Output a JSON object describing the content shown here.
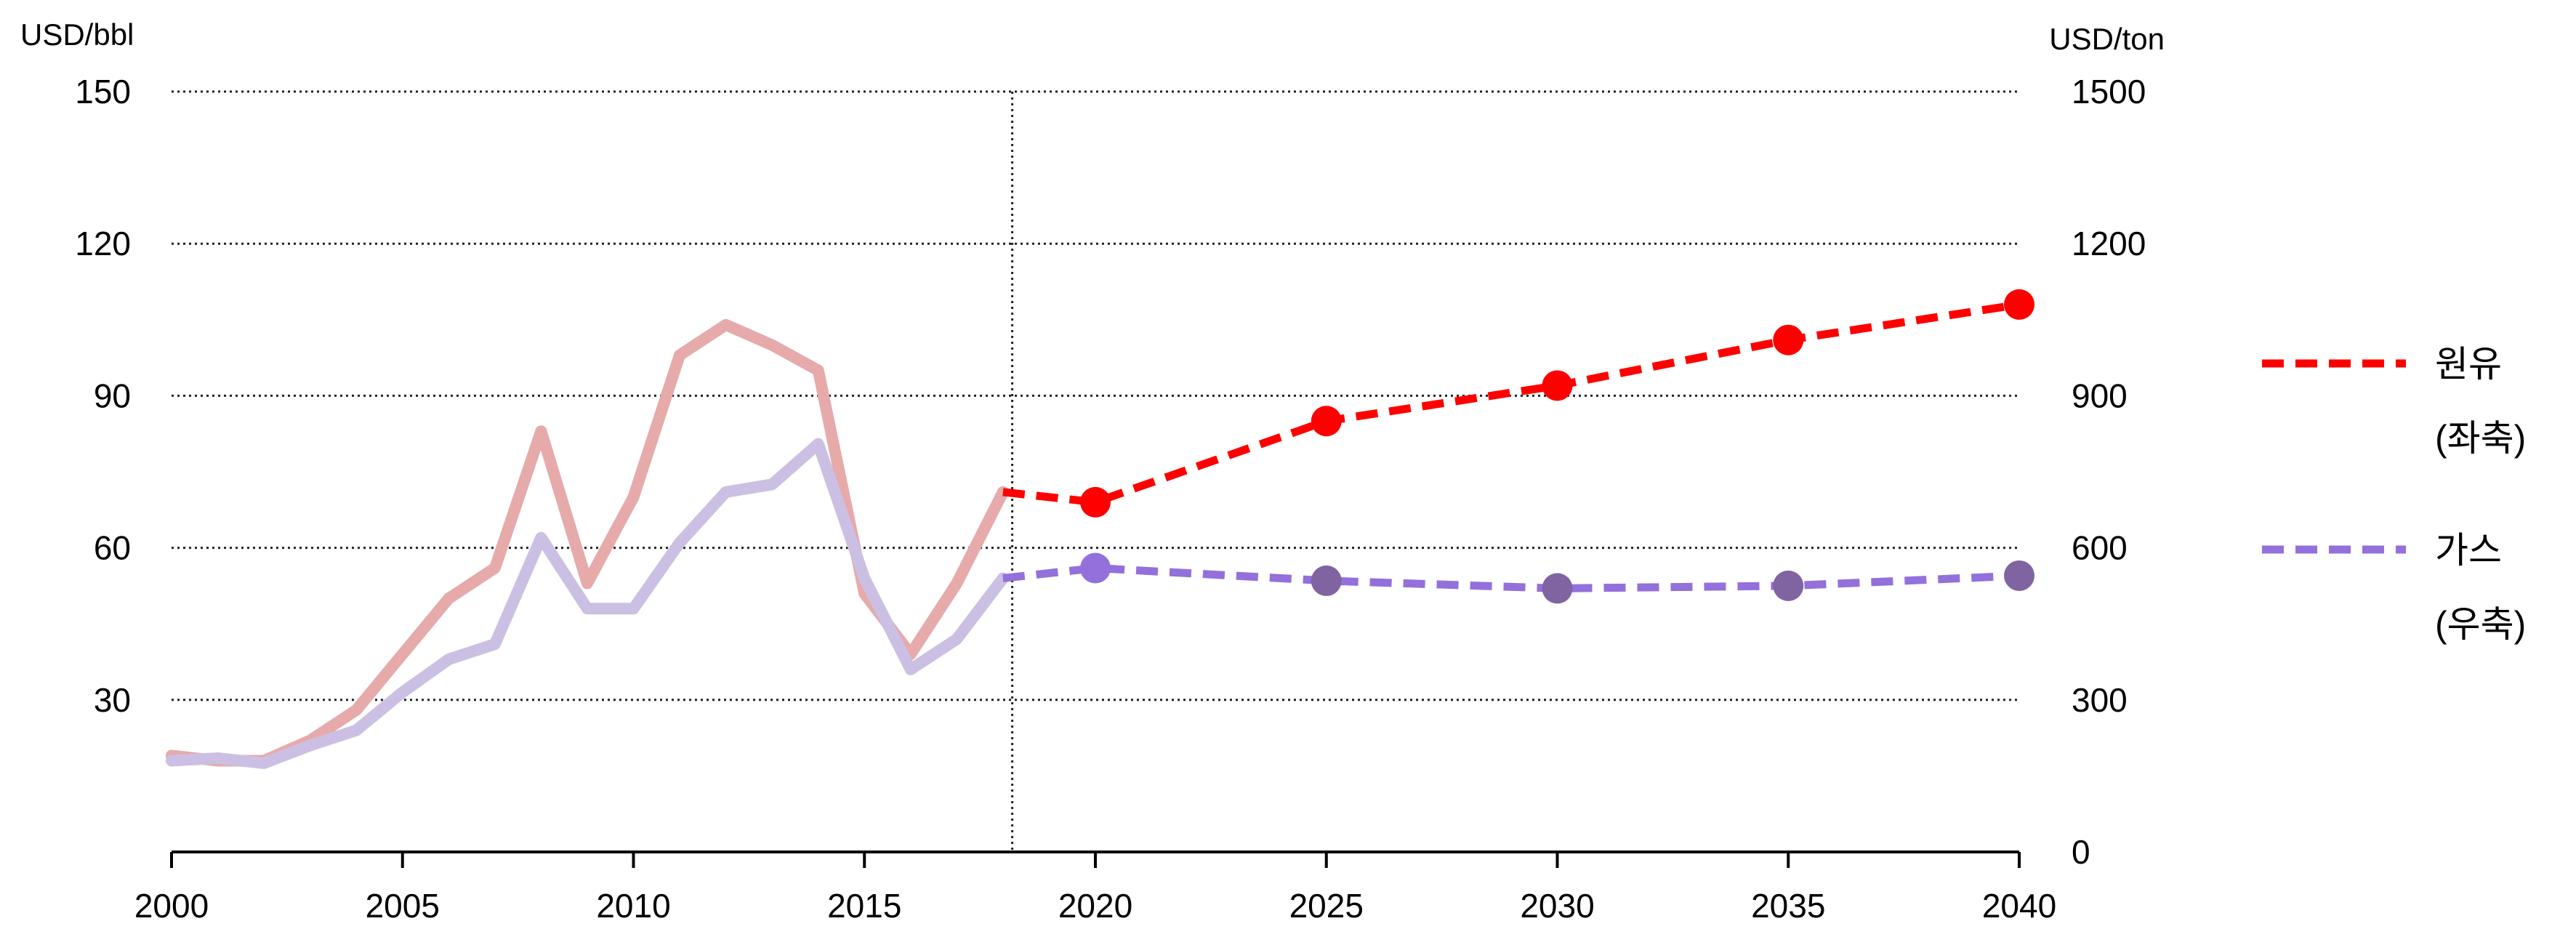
{
  "chart_data": {
    "type": "line",
    "title": "",
    "left_axis": {
      "unit": "USD/bbl",
      "ylim": [
        0,
        150
      ],
      "ticks": [
        "30",
        "60",
        "90",
        "120",
        "150"
      ]
    },
    "right_axis": {
      "unit": "USD/ton",
      "ylim": [
        0,
        1500
      ],
      "ticks": [
        "0",
        "300",
        "600",
        "900",
        "1200",
        "1500"
      ]
    },
    "x_axis": {
      "xlim": [
        2000,
        2040
      ],
      "ticks": [
        "2000",
        "2005",
        "2010",
        "2015",
        "2020",
        "2025",
        "2030",
        "2035",
        "2040"
      ]
    },
    "forecast_divider_year": 2018.2,
    "grid": "horizontal dotted",
    "legend_placement": "right",
    "series": [
      {
        "name": "원유",
        "name_suffix": "(좌축)",
        "axis": "left",
        "color": "#ff0000",
        "history_color": "#e6aaaa",
        "history": {
          "x": [
            2000,
            2001,
            2002,
            2003,
            2004,
            2005,
            2006,
            2007,
            2008,
            2009,
            2010,
            2011,
            2012,
            2013,
            2014,
            2015,
            2016,
            2017,
            2018
          ],
          "y": [
            19,
            18,
            18,
            22,
            28,
            39,
            50,
            56,
            83,
            53,
            70,
            98,
            104,
            100,
            95,
            51,
            39,
            53,
            71
          ]
        },
        "forecast": {
          "x": [
            2018,
            2020,
            2025,
            2030,
            2035,
            2040
          ],
          "y": [
            71,
            69,
            85,
            92,
            101,
            108
          ]
        },
        "markers": [
          2020,
          2025,
          2030,
          2035,
          2040
        ]
      },
      {
        "name": "가스",
        "name_suffix": "(우축)",
        "axis": "right",
        "color": "#9370db",
        "marker_color": "#8064a2",
        "history_color": "#cbc0e3",
        "history": {
          "x": [
            2000,
            2001,
            2002,
            2003,
            2004,
            2005,
            2006,
            2007,
            2008,
            2009,
            2010,
            2011,
            2012,
            2013,
            2014,
            2015,
            2016,
            2017,
            2018
          ],
          "y": [
            180,
            185,
            175,
            210,
            240,
            315,
            380,
            410,
            620,
            480,
            480,
            610,
            710,
            725,
            805,
            540,
            360,
            420,
            540
          ]
        },
        "forecast": {
          "x": [
            2018,
            2020,
            2025,
            2030,
            2035,
            2040
          ],
          "y": [
            540,
            560,
            535,
            520,
            525,
            545
          ]
        },
        "markers": [
          2020,
          2025,
          2030,
          2035,
          2040
        ]
      }
    ]
  }
}
